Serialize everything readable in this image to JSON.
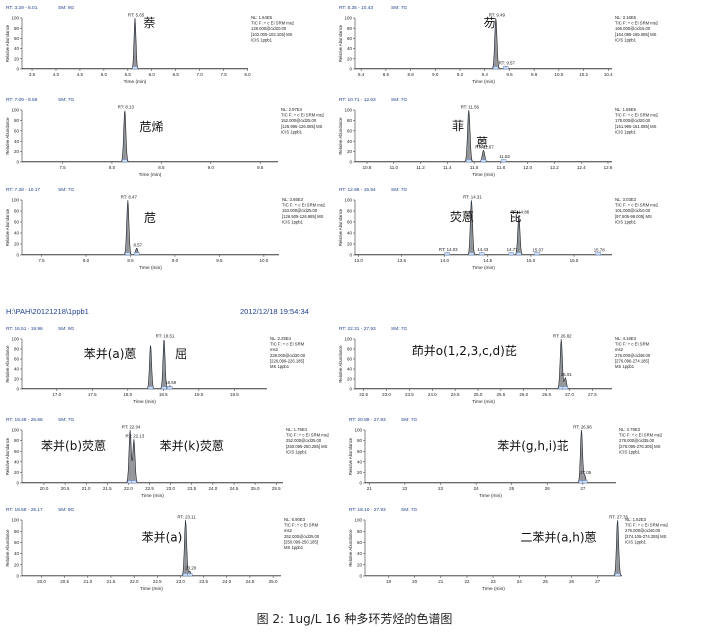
{
  "batch_header": {
    "path": "H:\\PAH\\20121218\\1ppb1",
    "datetime": "2012/12/18 19:54:34"
  },
  "caption": "图 2: 1ug/L 16 种多环芳烃的色谱图",
  "axis": {
    "xlabel": "Time (min)",
    "ylabel": "Relative Abundance",
    "yticks": [
      "0",
      "20",
      "40",
      "60",
      "80",
      "100"
    ]
  },
  "chart_data": [
    {
      "type": "line",
      "header": {
        "rt": "RT: 3.29 - 8.01",
        "sm": "SM: 9G"
      },
      "info": [
        "NL: 1.64E5",
        "TIC F: + c EI SRM ms2",
        "128.000@cid20.00",
        "[102.005-102.105] MS",
        "ICIS 1ppb1"
      ],
      "xlim": [
        3.29,
        8.01
      ],
      "xticks": [
        "3.5",
        "4.0",
        "4.5",
        "5.0",
        "5.5",
        "6.0",
        "6.5",
        "7.0",
        "7.5",
        "8.0"
      ],
      "peaks": [
        {
          "rt": 5.65,
          "height": 100,
          "label": "RT: 5.65"
        }
      ],
      "compounds": [
        {
          "name": "萘",
          "rt": 5.95,
          "y": 82
        }
      ]
    },
    {
      "type": "line",
      "header": {
        "rt": "RT: 8.35 - 10.43",
        "sm": "SM: 7G"
      },
      "info": [
        "NL: 3.16E5",
        "TIC F: + c EI SRM ms2",
        "166.000@cid15.00",
        "[164.095-165.085] MS",
        "ICIS 1ppb1"
      ],
      "xlim": [
        8.35,
        10.43
      ],
      "xticks": [
        "8.4",
        "8.6",
        "8.8",
        "9.0",
        "9.2",
        "9.4",
        "9.6",
        "9.8",
        "10.0",
        "10.2",
        "10.4"
      ],
      "peaks": [
        {
          "rt": 9.49,
          "height": 100,
          "label": "RT: 9.49"
        },
        {
          "rt": 9.57,
          "height": 5,
          "label": "RT: 9.57"
        }
      ],
      "compounds": [
        {
          "name": "芴",
          "rt": 9.44,
          "y": 82
        }
      ]
    },
    {
      "type": "line",
      "header": {
        "rt": "RT: 7.09 - 9.68",
        "sm": "SM: 7G"
      },
      "info": [
        "NL: 2.97E4",
        "TIC F: + c EI SRM ms2",
        "152.000@cid25.00",
        "[125.995-126.085] MS",
        "ICIS 1ppb1"
      ],
      "xlim": [
        7.09,
        9.68
      ],
      "xticks": [
        "7.5",
        "8.0",
        "8.5",
        "9.0",
        "9.5"
      ],
      "peaks": [
        {
          "rt": 8.13,
          "height": 100,
          "label": "RT: 8.13"
        }
      ],
      "compounds": [
        {
          "name": "苊烯",
          "rt": 8.4,
          "y": 60
        }
      ]
    },
    {
      "type": "line",
      "header": {
        "rt": "RT: 10.71 - 12.63",
        "sm": "SM: 7G"
      },
      "info": [
        "NL: 1.55E5",
        "TIC F: + c EI SRM ms2",
        "178.000@cid20.00",
        "[151.995-151.085] MS",
        "ICIS 1ppb1"
      ],
      "xlim": [
        10.71,
        12.63
      ],
      "xticks": [
        "10.8",
        "11.0",
        "11.2",
        "11.4",
        "11.6",
        "11.8",
        "12.0",
        "12.2",
        "12.4",
        "12.6"
      ],
      "peaks": [
        {
          "rt": 11.56,
          "height": 100,
          "label": "RT: 11.56"
        },
        {
          "rt": 11.67,
          "height": 22,
          "label": "RT: 11.67"
        },
        {
          "rt": 11.82,
          "height": 4,
          "label": "11.82"
        }
      ],
      "compounds": [
        {
          "name": "菲",
          "rt": 11.48,
          "y": 62
        },
        {
          "name": "蒽",
          "rt": 11.66,
          "y": 30
        }
      ]
    },
    {
      "type": "line",
      "header": {
        "rt": "RT: 7.28 - 10.17",
        "sm": "SM: 7G"
      },
      "info": [
        "NL: 3.66E3",
        "TIC F: + c EI SRM ms2",
        "153.000@cid25.00",
        "[126.505-126.985] MS",
        "ICIS 1ppb1"
      ],
      "xlim": [
        7.28,
        10.17
      ],
      "xticks": [
        "7.5",
        "8.0",
        "8.5",
        "9.0",
        "9.5",
        "10.0"
      ],
      "peaks": [
        {
          "rt": 8.47,
          "height": 100,
          "label": "RT: 8.47"
        },
        {
          "rt": 8.57,
          "height": 12,
          "label": "8.57"
        }
      ],
      "compounds": [
        {
          "name": "苊",
          "rt": 8.72,
          "y": 60
        }
      ]
    },
    {
      "type": "line",
      "header": {
        "rt": "RT: 12.96 - 15.94",
        "sm": "SM: 7G"
      },
      "info": [
        "NL: 3.03E3",
        "TIC F: + c EI SRM ms2",
        "101.000@cid10.00",
        "[97.505-98.005] MS",
        "ICIS 1ppb1"
      ],
      "xlim": [
        12.96,
        15.94
      ],
      "xticks": [
        "13.0",
        "13.5",
        "14.0",
        "14.5",
        "15.0",
        "15.5"
      ],
      "peaks": [
        {
          "rt": 14.31,
          "height": 100,
          "label": "RT: 14.31"
        },
        {
          "rt": 14.43,
          "height": 4,
          "label": "14.43"
        },
        {
          "rt": 14.86,
          "height": 72,
          "label": "RT: 14.86"
        },
        {
          "rt": 14.77,
          "height": 4,
          "label": "14.77"
        },
        {
          "rt": 14.03,
          "height": 4,
          "label": "RT: 14.03"
        },
        {
          "rt": 15.07,
          "height": 3,
          "label": "15.07"
        },
        {
          "rt": 15.78,
          "height": 3,
          "label": "15.78"
        }
      ],
      "compounds": [
        {
          "name": "荧蒽",
          "rt": 14.2,
          "y": 62
        },
        {
          "name": "芘",
          "rt": 14.82,
          "y": 62
        }
      ]
    },
    {
      "type": "line",
      "header": {
        "rt": "RT: 16.51 - 19.96",
        "sm": "SM: 9G"
      },
      "info": [
        "NL: 2.25E4",
        "TIC F: + c EI SRM",
        "ms2",
        "228.000@cid30.00",
        "[226.099-226.185]",
        "MS 1ppb1"
      ],
      "xlim": [
        16.51,
        19.96
      ],
      "xticks": [
        "17.0",
        "17.5",
        "18.0",
        "18.5",
        "19.0",
        "19.5"
      ],
      "peaks": [
        {
          "rt": 18.32,
          "height": 88,
          "label": ""
        },
        {
          "rt": 18.51,
          "height": 100,
          "label": "RT: 18.51"
        },
        {
          "rt": 18.59,
          "height": 6,
          "label": "18.59"
        }
      ],
      "compounds": [
        {
          "name": "苯并(a)蒽",
          "rt": 17.75,
          "y": 62
        },
        {
          "name": "屈",
          "rt": 18.75,
          "y": 62
        }
      ]
    },
    {
      "type": "line",
      "header": {
        "rt": "RT: 22.31 - 27.93",
        "sm": "SM: 7G"
      },
      "info": [
        "NL: 4.16E3",
        "TIC F: + c EI SRM",
        "ms2",
        "276.000@cid48.00",
        "[276.096-274.185]",
        "MS 1ppb1"
      ],
      "xlim": [
        22.31,
        27.93
      ],
      "xticks": [
        "22.5",
        "23.0",
        "23.5",
        "24.0",
        "24.5",
        "25.0",
        "25.5",
        "26.0",
        "26.5",
        "27.0",
        "27.5"
      ],
      "peaks": [
        {
          "rt": 26.82,
          "height": 100,
          "label": "RT: 26.82"
        },
        {
          "rt": 26.91,
          "height": 22,
          "label": "26.91"
        }
      ],
      "compounds": [
        {
          "name": "茚并o(1,2,3,c,d)芘",
          "rt": 24.7,
          "y": 68
        }
      ]
    },
    {
      "type": "line",
      "header": {
        "rt": "RT: 19.48 - 25.66",
        "sm": "SM: 7G"
      },
      "info": [
        "NL: 1.76E4",
        "TIC F: + c EI SRM ms2",
        "252.000@cid35.00",
        "[250.095-250.285] MS",
        "ICIS 1ppb1"
      ],
      "xlim": [
        19.48,
        25.66
      ],
      "xticks": [
        "20.0",
        "20.5",
        "21.0",
        "21.5",
        "22.0",
        "22.5",
        "23.0",
        "23.5",
        "24.0",
        "24.5",
        "25.0",
        "25.5"
      ],
      "peaks": [
        {
          "rt": 22.04,
          "height": 100,
          "label": "RT: 22.04"
        },
        {
          "rt": 22.13,
          "height": 82,
          "label": "RT: 22.13"
        }
      ],
      "compounds": [
        {
          "name": "苯并(b)荧蒽",
          "rt": 20.7,
          "y": 62
        },
        {
          "name": "苯并(k)荧蒽",
          "rt": 23.5,
          "y": 62
        }
      ]
    },
    {
      "type": "line",
      "header": {
        "rt": "RT: 20.88 - 27.93",
        "sm": "SM: 7G"
      },
      "info": [
        "NL: 3.79E3",
        "TIC F: + c EI SRM ms2",
        "278.000@cid35.00",
        "[276.095-276.305] MS",
        "ICIS 1ppb1"
      ],
      "xlim": [
        20.88,
        27.93
      ],
      "xticks": [
        "21",
        "22",
        "23",
        "24",
        "25",
        "26",
        "27"
      ],
      "peaks": [
        {
          "rt": 26.96,
          "height": 100,
          "label": "RT: 26.96"
        },
        {
          "rt": 27.05,
          "height": 14,
          "label": "27.05"
        }
      ],
      "compounds": [
        {
          "name": "苯并(g,h,i)苝",
          "rt": 25.6,
          "y": 62
        }
      ]
    },
    {
      "type": "line",
      "header": {
        "rt": "RT: 19.58 - 25.17",
        "sm": "SM: 9G"
      },
      "info": [
        "NL: 6.90E3",
        "TIC F: + c EI SRM",
        "ms2",
        "252.000@cid35.00",
        "[250.099-250.185]",
        "MS 1ppb1"
      ],
      "xlim": [
        19.58,
        25.17
      ],
      "xticks": [
        "20.0",
        "20.5",
        "21.0",
        "21.5",
        "22.0",
        "22.5",
        "23.0",
        "23.5",
        "24.0",
        "24.5",
        "25.0"
      ],
      "peaks": [
        {
          "rt": 23.11,
          "height": 100,
          "label": "RT: 23.11"
        },
        {
          "rt": 23.2,
          "height": 8,
          "label": "23.20"
        }
      ],
      "compounds": [
        {
          "name": "苯并(a)",
          "rt": 22.6,
          "y": 62
        }
      ]
    },
    {
      "type": "line",
      "header": {
        "rt": "RT: 18.10 - 27.93",
        "sm": "SM: 7G"
      },
      "info": [
        "NL: 1.62E3",
        "TIC F: + c EI SRM ms2",
        "276.000@cid40.00",
        "[274.105-274.255] MS",
        "ICIS 1ppb1"
      ],
      "xlim": [
        18.1,
        27.93
      ],
      "xticks": [
        "19",
        "20",
        "21",
        "22",
        "23",
        "24",
        "25",
        "26",
        "27"
      ],
      "peaks": [
        {
          "rt": 27.76,
          "height": 100,
          "label": "RT: 27.76"
        }
      ],
      "compounds": [
        {
          "name": "二苯并(a,h)蒽",
          "rt": 25.5,
          "y": 62
        }
      ]
    }
  ]
}
